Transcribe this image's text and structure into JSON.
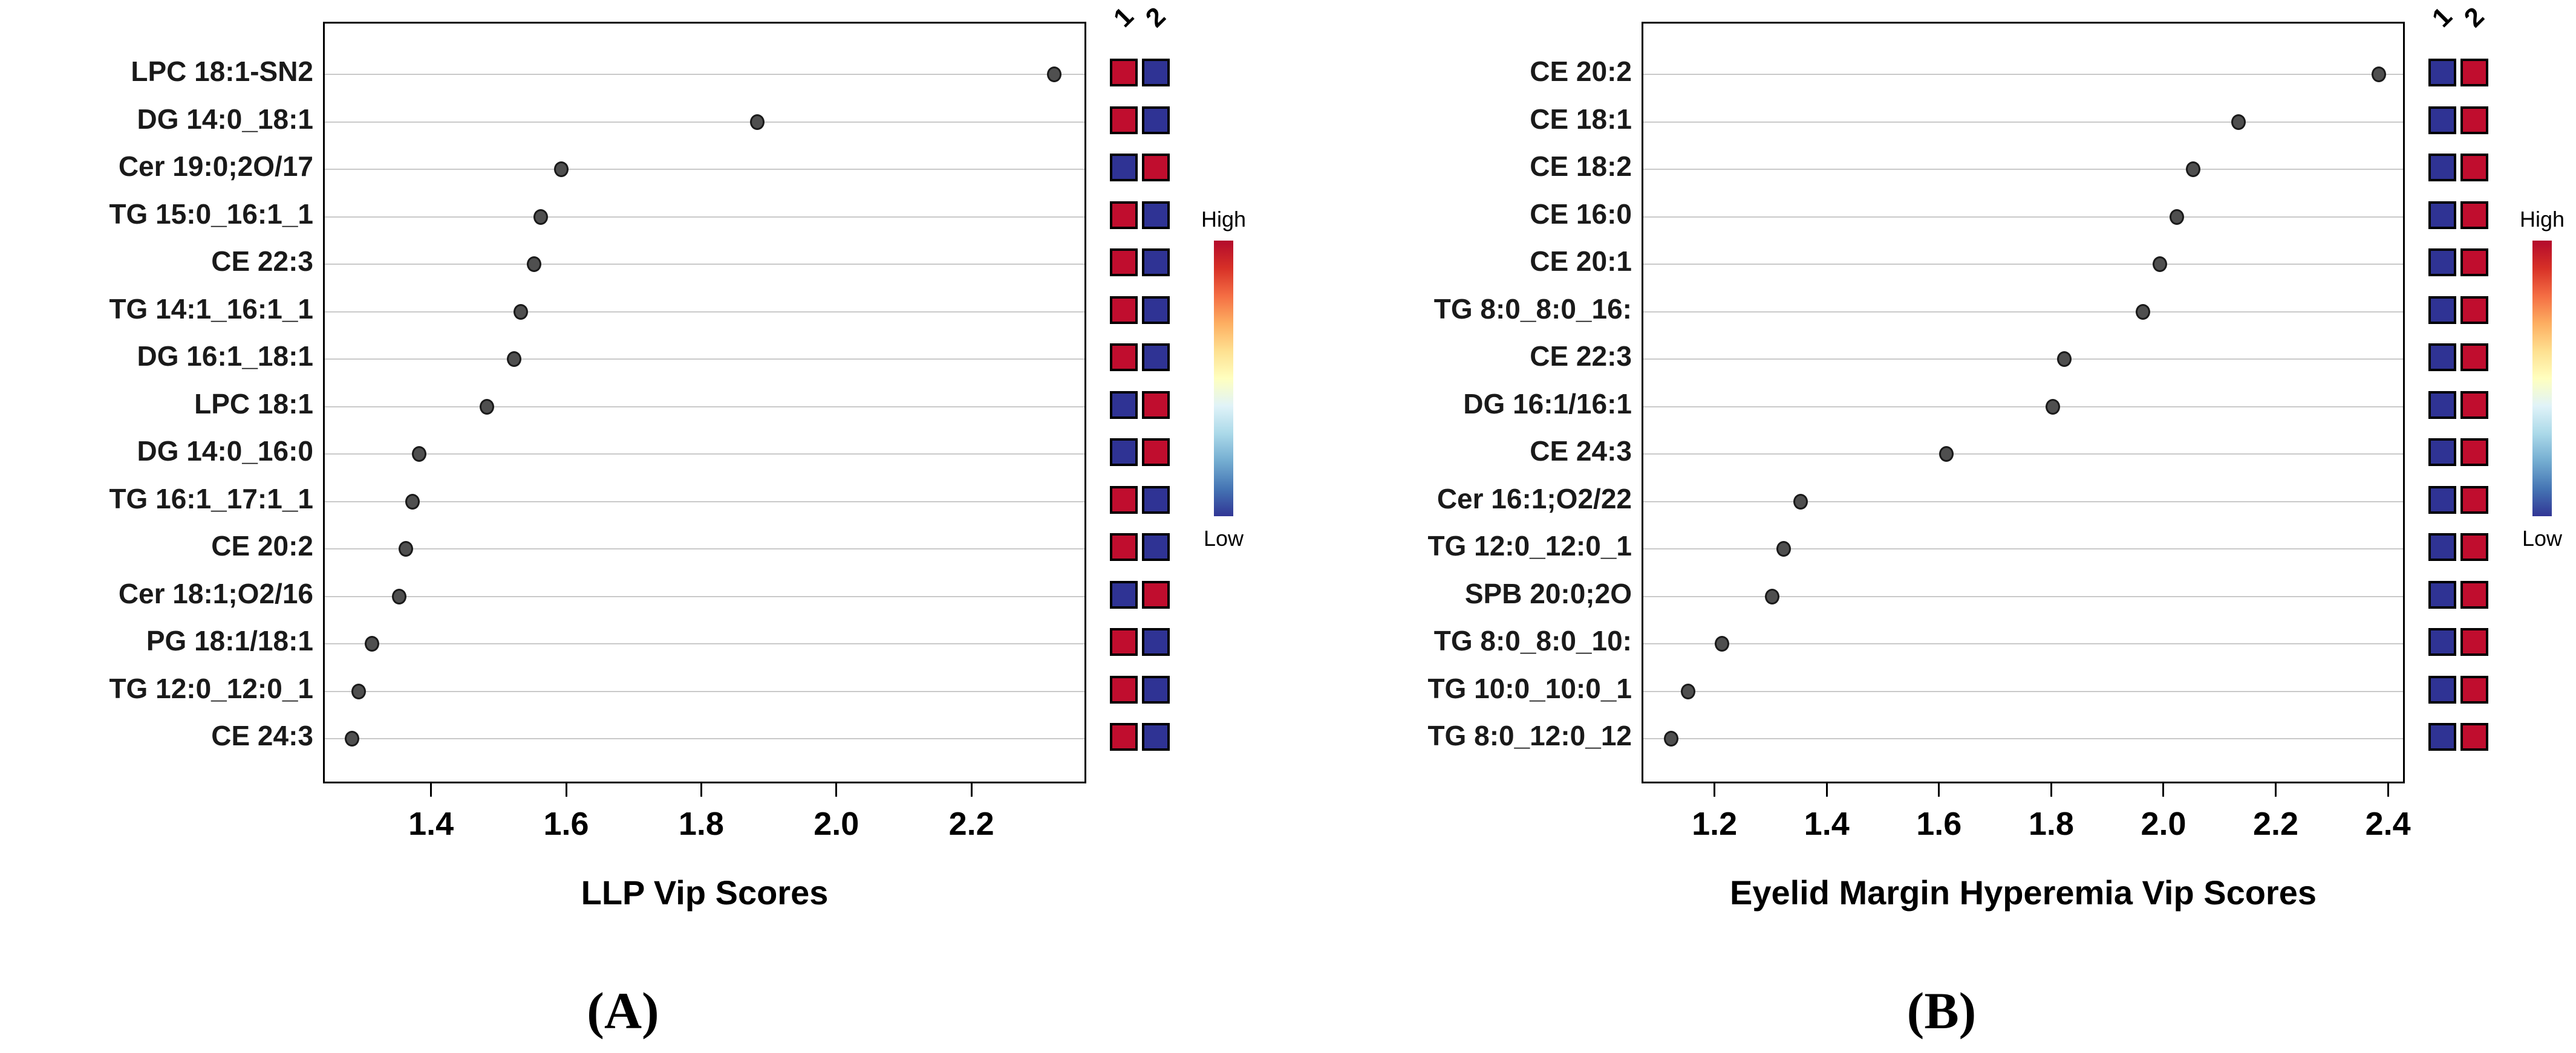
{
  "figure": {
    "captions": [
      "(A)",
      "(B)"
    ],
    "heat_column_headers": [
      "1",
      "2"
    ],
    "colorbar": {
      "high": "High",
      "low": "Low"
    },
    "colors": {
      "heat_high_red": "#c00d2e",
      "heat_low_blue": "#2f3394",
      "dot_fill": "#4f4f4f",
      "dot_stroke": "#1a1a1a",
      "gridline": "#c9c9c9",
      "box_border": "#000000",
      "gradient_stops": [
        "#b30b2c",
        "#d73027",
        "#f46d43",
        "#fdae61",
        "#fee090",
        "#ffffbf",
        "#e0f3f8",
        "#abd9e9",
        "#74add1",
        "#4575b4",
        "#313695"
      ]
    }
  },
  "chart_data": [
    {
      "type": "scatter",
      "panel": "A",
      "title": "",
      "xlabel": "LLP Vip Scores",
      "ylabel": "",
      "xlim": [
        1.24,
        2.37
      ],
      "xticks": [
        "1.4",
        "1.6",
        "1.8",
        "2.0",
        "2.2"
      ],
      "grid": true,
      "legend_position": "right",
      "heat_columns": [
        "1",
        "2"
      ],
      "rows": [
        {
          "label": "LPC 18:1-SN2",
          "vip": 2.32,
          "heat": [
            "high",
            "low"
          ]
        },
        {
          "label": "DG 14:0_18:1",
          "vip": 1.88,
          "heat": [
            "high",
            "low"
          ]
        },
        {
          "label": "Cer 19:0;2O/17",
          "vip": 1.59,
          "heat": [
            "low",
            "high"
          ]
        },
        {
          "label": "TG 15:0_16:1_1",
          "vip": 1.56,
          "heat": [
            "high",
            "low"
          ]
        },
        {
          "label": "CE 22:3",
          "vip": 1.55,
          "heat": [
            "high",
            "low"
          ]
        },
        {
          "label": "TG 14:1_16:1_1",
          "vip": 1.53,
          "heat": [
            "high",
            "low"
          ]
        },
        {
          "label": "DG 16:1_18:1",
          "vip": 1.52,
          "heat": [
            "high",
            "low"
          ]
        },
        {
          "label": "LPC 18:1",
          "vip": 1.48,
          "heat": [
            "low",
            "high"
          ]
        },
        {
          "label": "DG 14:0_16:0",
          "vip": 1.38,
          "heat": [
            "low",
            "high"
          ]
        },
        {
          "label": "TG 16:1_17:1_1",
          "vip": 1.37,
          "heat": [
            "high",
            "low"
          ]
        },
        {
          "label": "CE 20:2",
          "vip": 1.36,
          "heat": [
            "high",
            "low"
          ]
        },
        {
          "label": "Cer 18:1;O2/16",
          "vip": 1.35,
          "heat": [
            "low",
            "high"
          ]
        },
        {
          "label": "PG 18:1/18:1",
          "vip": 1.31,
          "heat": [
            "high",
            "low"
          ]
        },
        {
          "label": "TG 12:0_12:0_1",
          "vip": 1.29,
          "heat": [
            "high",
            "low"
          ]
        },
        {
          "label": "CE 24:3",
          "vip": 1.28,
          "heat": [
            "high",
            "low"
          ]
        }
      ]
    },
    {
      "type": "scatter",
      "panel": "B",
      "title": "",
      "xlabel": "Eyelid Margin Hyperemia Vip Scores",
      "ylabel": "",
      "xlim": [
        1.07,
        2.43
      ],
      "xticks": [
        "1.2",
        "1.4",
        "1.6",
        "1.8",
        "2.0",
        "2.2",
        "2.4"
      ],
      "grid": true,
      "legend_position": "right",
      "heat_columns": [
        "1",
        "2"
      ],
      "rows": [
        {
          "label": "CE 20:2",
          "vip": 2.38,
          "heat": [
            "low",
            "high"
          ]
        },
        {
          "label": "CE 18:1",
          "vip": 2.13,
          "heat": [
            "low",
            "high"
          ]
        },
        {
          "label": "CE 18:2",
          "vip": 2.05,
          "heat": [
            "low",
            "high"
          ]
        },
        {
          "label": "CE 16:0",
          "vip": 2.02,
          "heat": [
            "low",
            "high"
          ]
        },
        {
          "label": "CE 20:1",
          "vip": 1.99,
          "heat": [
            "low",
            "high"
          ]
        },
        {
          "label": "TG 8:0_8:0_16:",
          "vip": 1.96,
          "heat": [
            "low",
            "high"
          ]
        },
        {
          "label": "CE 22:3",
          "vip": 1.82,
          "heat": [
            "low",
            "high"
          ]
        },
        {
          "label": "DG 16:1/16:1",
          "vip": 1.8,
          "heat": [
            "low",
            "high"
          ]
        },
        {
          "label": "CE 24:3",
          "vip": 1.61,
          "heat": [
            "low",
            "high"
          ]
        },
        {
          "label": "Cer 16:1;O2/22",
          "vip": 1.35,
          "heat": [
            "low",
            "high"
          ]
        },
        {
          "label": "TG 12:0_12:0_1",
          "vip": 1.32,
          "heat": [
            "low",
            "high"
          ]
        },
        {
          "label": "SPB 20:0;2O",
          "vip": 1.3,
          "heat": [
            "low",
            "high"
          ]
        },
        {
          "label": "TG 8:0_8:0_10:",
          "vip": 1.21,
          "heat": [
            "low",
            "high"
          ]
        },
        {
          "label": "TG 10:0_10:0_1",
          "vip": 1.15,
          "heat": [
            "low",
            "high"
          ]
        },
        {
          "label": "TG 8:0_12:0_12",
          "vip": 1.12,
          "heat": [
            "low",
            "high"
          ]
        }
      ]
    }
  ]
}
